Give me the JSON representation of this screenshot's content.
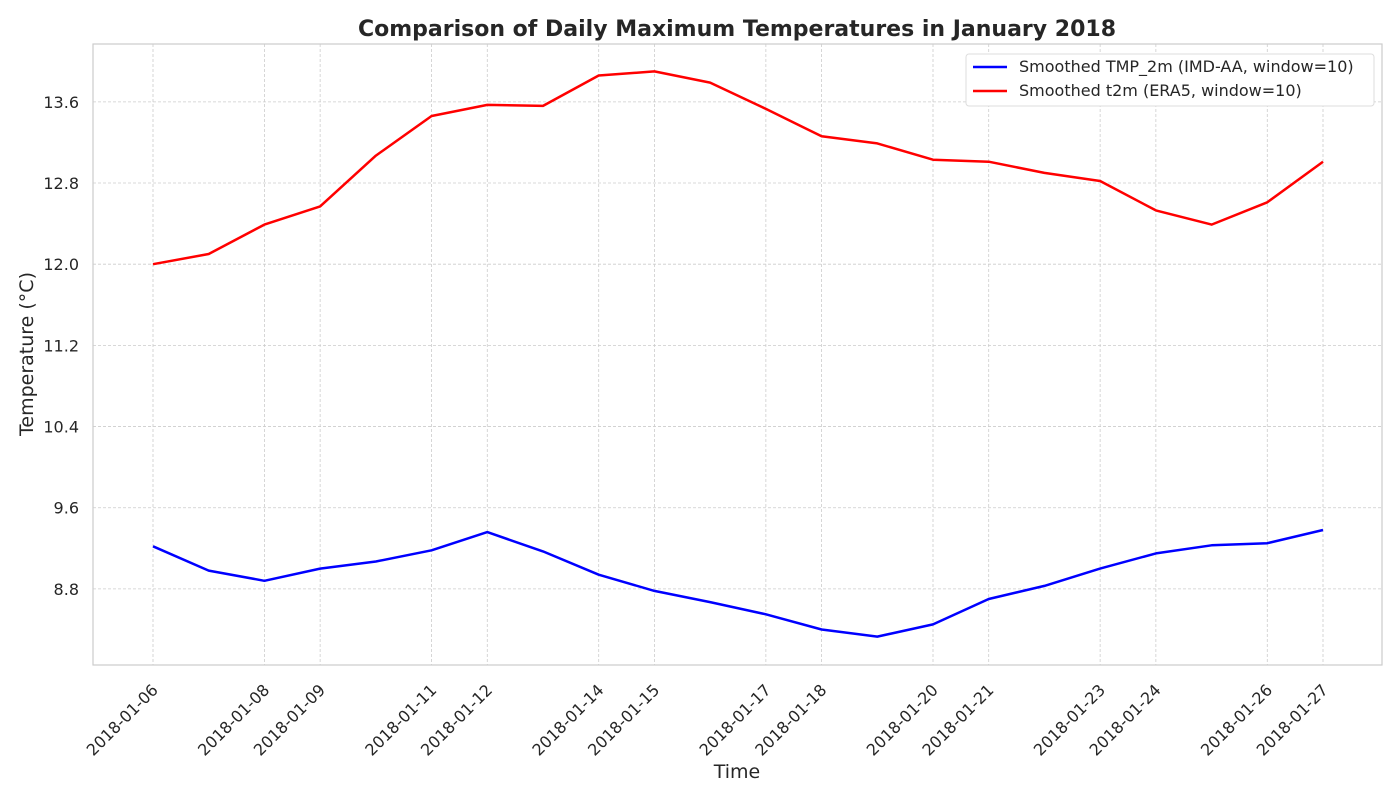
{
  "chart_data": {
    "type": "line",
    "title": "Comparison of Daily Maximum Temperatures in January 2018",
    "xlabel": "Time",
    "ylabel": "Temperature (°C)",
    "x": [
      "2018-01-06",
      "2018-01-07",
      "2018-01-08",
      "2018-01-09",
      "2018-01-10",
      "2018-01-11",
      "2018-01-12",
      "2018-01-13",
      "2018-01-14",
      "2018-01-15",
      "2018-01-16",
      "2018-01-17",
      "2018-01-18",
      "2018-01-19",
      "2018-01-20",
      "2018-01-21",
      "2018-01-22",
      "2018-01-23",
      "2018-01-24",
      "2018-01-25",
      "2018-01-26",
      "2018-01-27"
    ],
    "x_tick_labels": [
      "2018-01-06",
      "2018-01-08",
      "2018-01-09",
      "2018-01-11",
      "2018-01-12",
      "2018-01-14",
      "2018-01-15",
      "2018-01-17",
      "2018-01-18",
      "2018-01-20",
      "2018-01-21",
      "2018-01-23",
      "2018-01-24",
      "2018-01-26",
      "2018-01-27"
    ],
    "y_ticks": [
      "8.8",
      "9.6",
      "10.4",
      "11.2",
      "12.0",
      "12.8",
      "13.6"
    ],
    "ylim": [
      8.05,
      14.17
    ],
    "grid": true,
    "legend_position": "top-right",
    "series": [
      {
        "name": "Smoothed TMP_2m (IMD-AA, window=10)",
        "color": "#0000ff",
        "values": [
          9.22,
          8.98,
          8.88,
          9.0,
          9.07,
          9.18,
          9.36,
          9.17,
          8.94,
          8.78,
          8.67,
          8.55,
          8.4,
          8.33,
          8.45,
          8.7,
          8.83,
          9.0,
          9.15,
          9.23,
          9.25,
          9.38
        ]
      },
      {
        "name": "Smoothed t2m (ERA5, window=10)",
        "color": "#ff0000",
        "values": [
          12.0,
          12.1,
          12.39,
          12.57,
          13.07,
          13.46,
          13.57,
          13.56,
          13.86,
          13.9,
          13.79,
          13.53,
          13.26,
          13.19,
          13.03,
          13.01,
          12.9,
          12.82,
          12.53,
          12.39,
          12.61,
          13.01
        ]
      }
    ]
  }
}
